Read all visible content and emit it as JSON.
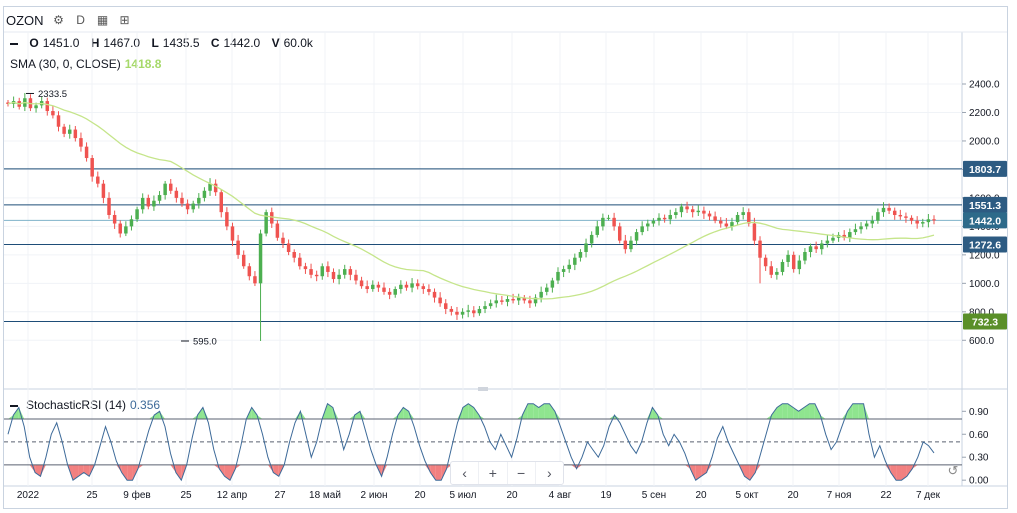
{
  "toolbar": {
    "symbol": "OZON",
    "interval": "D"
  },
  "legend": {
    "o_label": "O",
    "o_value": "1451.0",
    "h_label": "H",
    "h_value": "1467.0",
    "l_label": "L",
    "l_value": "1435.5",
    "c_label": "C",
    "c_value": "1442.0",
    "v_label": "V",
    "v_value": "60.0k",
    "sma_label": "SMA (30, 0, CLOSE)",
    "sma_value": "1418.8",
    "stoch_label": "StochasticRSI (14)",
    "stoch_value": "0.356"
  },
  "navigation": {
    "prev": "‹",
    "zoom_in": "+",
    "zoom_out": "−",
    "next": "›",
    "reset": "↺"
  },
  "colors": {
    "up": "#4caf50",
    "down": "#ef5350",
    "sma": "#c5e58a",
    "stoch": "#3d6a99",
    "level_line": "#1e4d78",
    "overbought_fill": "#7be07b",
    "oversold_fill": "#f06a6a"
  },
  "chart_data": [
    {
      "type": "candlestick",
      "symbol": "OZON",
      "y_axis_ticks": [
        "600.0",
        "800.0",
        "1000.0",
        "1200.0",
        "1400.0",
        "1600.0",
        "1800.0",
        "2000.0",
        "2200.0",
        "2400.0"
      ],
      "ylim": [
        520,
        2520
      ],
      "x_tick_labels": [
        "2022",
        "25",
        "9 фев",
        "25",
        "12 апр",
        "27",
        "18 май",
        "2 июн",
        "20",
        "5 июл",
        "20",
        "4 авг",
        "19",
        "5 сен",
        "20",
        "5 окт",
        "20",
        "7 ноя",
        "22",
        "7 дек"
      ],
      "annotations": [
        {
          "text": "2333.5",
          "kind": "high_marker",
          "value": 2333.5
        },
        {
          "text": "595.0",
          "kind": "low_marker",
          "value": 595.0
        }
      ],
      "horizontal_levels": [
        {
          "label": "1803.7",
          "value": 1803.7
        },
        {
          "label": "1551.3",
          "value": 1551.3
        },
        {
          "label": "1442.0",
          "value": 1442.0,
          "current": true
        },
        {
          "label": "1272.6",
          "value": 1272.6
        },
        {
          "label": "732.3",
          "value": 732.3
        }
      ],
      "close_path": [
        2260,
        2280,
        2240,
        2300,
        2230,
        2250,
        2280,
        2210,
        2180,
        2100,
        2050,
        2080,
        2020,
        1960,
        1880,
        1750,
        1700,
        1600,
        1480,
        1420,
        1350,
        1400,
        1450,
        1520,
        1600,
        1540,
        1580,
        1620,
        1700,
        1650,
        1600,
        1560,
        1520,
        1560,
        1600,
        1650,
        1700,
        1640,
        1500,
        1400,
        1300,
        1200,
        1120,
        1050,
        1000,
        1350,
        1500,
        1420,
        1320,
        1280,
        1220,
        1180,
        1120,
        1100,
        1060,
        1050,
        1120,
        1080,
        1030,
        1060,
        1100,
        1060,
        1020,
        980,
        960,
        990,
        970,
        940,
        920,
        960,
        990,
        970,
        1000,
        980,
        960,
        940,
        900,
        860,
        820,
        800,
        780,
        800,
        810,
        790,
        820,
        840,
        860,
        880,
        870,
        890,
        880,
        900,
        880,
        860,
        900,
        940,
        970,
        1020,
        1080,
        1100,
        1130,
        1180,
        1220,
        1280,
        1340,
        1400,
        1460,
        1460,
        1400,
        1300,
        1240,
        1300,
        1360,
        1400,
        1420,
        1440,
        1460,
        1450,
        1480,
        1500,
        1540,
        1520,
        1500,
        1510,
        1490,
        1470,
        1440,
        1420,
        1400,
        1430,
        1480,
        1500,
        1420,
        1300,
        1180,
        1120,
        1060,
        1080,
        1150,
        1200,
        1100,
        1160,
        1220,
        1260,
        1240,
        1280,
        1300,
        1320,
        1340,
        1320,
        1360,
        1380,
        1400,
        1420,
        1440,
        1500,
        1530,
        1510,
        1480,
        1470,
        1460,
        1440,
        1420,
        1430,
        1450,
        1442
      ],
      "sma": {
        "name": "SMA (30, 0, CLOSE)",
        "last": 1418.8
      }
    },
    {
      "type": "line",
      "name": "StochasticRSI (14)",
      "last": 0.356,
      "y_axis_ticks": [
        "0.00",
        "0.30",
        "0.60",
        "0.90"
      ],
      "ylim": [
        -0.05,
        1.1
      ],
      "levels": [
        0.8,
        0.5,
        0.2
      ],
      "values": [
        0.6,
        0.85,
        0.95,
        0.7,
        0.3,
        0.1,
        0.05,
        0.3,
        0.6,
        0.75,
        0.5,
        0.2,
        0.0,
        0.05,
        0.1,
        0.05,
        0.2,
        0.45,
        0.7,
        0.5,
        0.25,
        0.1,
        0.0,
        0.0,
        0.15,
        0.4,
        0.65,
        0.85,
        0.9,
        0.7,
        0.35,
        0.1,
        0.0,
        0.2,
        0.55,
        0.85,
        0.95,
        0.75,
        0.4,
        0.15,
        0.05,
        0.0,
        0.15,
        0.45,
        0.8,
        0.95,
        0.85,
        0.6,
        0.3,
        0.1,
        0.05,
        0.2,
        0.5,
        0.75,
        0.9,
        0.6,
        0.3,
        0.5,
        0.8,
        1.0,
        0.95,
        0.7,
        0.4,
        0.6,
        0.85,
        0.9,
        0.65,
        0.4,
        0.2,
        0.05,
        0.3,
        0.6,
        0.85,
        0.95,
        0.9,
        0.7,
        0.45,
        0.25,
        0.1,
        0.0,
        0.0,
        0.15,
        0.45,
        0.75,
        0.95,
        1.0,
        0.95,
        0.85,
        0.7,
        0.5,
        0.4,
        0.6,
        0.45,
        0.3,
        0.55,
        0.85,
        1.0,
        1.0,
        0.95,
        1.0,
        1.0,
        0.9,
        0.7,
        0.5,
        0.3,
        0.15,
        0.3,
        0.5,
        0.4,
        0.3,
        0.45,
        0.7,
        0.85,
        0.75,
        0.6,
        0.45,
        0.35,
        0.5,
        0.75,
        0.95,
        0.85,
        0.6,
        0.45,
        0.6,
        0.5,
        0.35,
        0.15,
        0.0,
        0.05,
        0.1,
        0.3,
        0.55,
        0.7,
        0.5,
        0.35,
        0.2,
        0.05,
        0.0,
        0.1,
        0.35,
        0.6,
        0.85,
        0.95,
        1.0,
        1.0,
        0.95,
        0.9,
        0.95,
        1.0,
        1.0,
        0.85,
        0.6,
        0.4,
        0.5,
        0.7,
        0.9,
        1.0,
        1.0,
        1.0,
        0.6,
        0.3,
        0.45,
        0.25,
        0.1,
        0.0,
        0.0,
        0.05,
        0.15,
        0.3,
        0.5,
        0.45,
        0.356
      ]
    }
  ]
}
